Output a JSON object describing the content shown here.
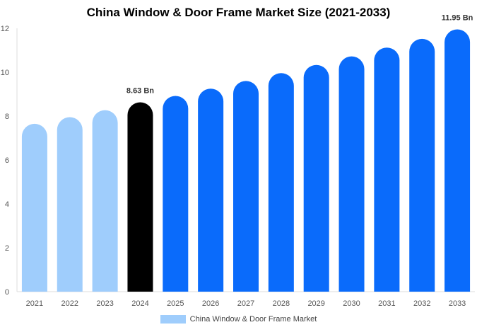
{
  "chart_data": {
    "type": "bar",
    "title": "China Window & Door Frame Market Size (2021-2033)",
    "categories": [
      "2021",
      "2022",
      "2023",
      "2024",
      "2025",
      "2026",
      "2027",
      "2028",
      "2029",
      "2030",
      "2031",
      "2032",
      "2033"
    ],
    "series": [
      {
        "name": "China Window & Door Frame Market",
        "values": [
          7.65,
          7.95,
          8.27,
          8.63,
          8.92,
          9.25,
          9.6,
          9.96,
          10.33,
          10.72,
          11.12,
          11.52,
          11.95
        ]
      }
    ],
    "data_labels": {
      "2024": "8.63 Bn",
      "2033": "11.95 Bn"
    },
    "ylim": [
      0,
      12
    ],
    "yticks": [
      0,
      2,
      4,
      6,
      8,
      10,
      12
    ],
    "xlabel": "",
    "ylabel": "",
    "grid": false,
    "legend_position": "bottom",
    "colors": {
      "historical": "#9fcdfc",
      "current": "#000000",
      "forecast": "#0a6bfb",
      "legend_swatch": "#9fcdfc"
    },
    "historical_years": [
      "2021",
      "2022",
      "2023"
    ],
    "current_year": "2024"
  }
}
